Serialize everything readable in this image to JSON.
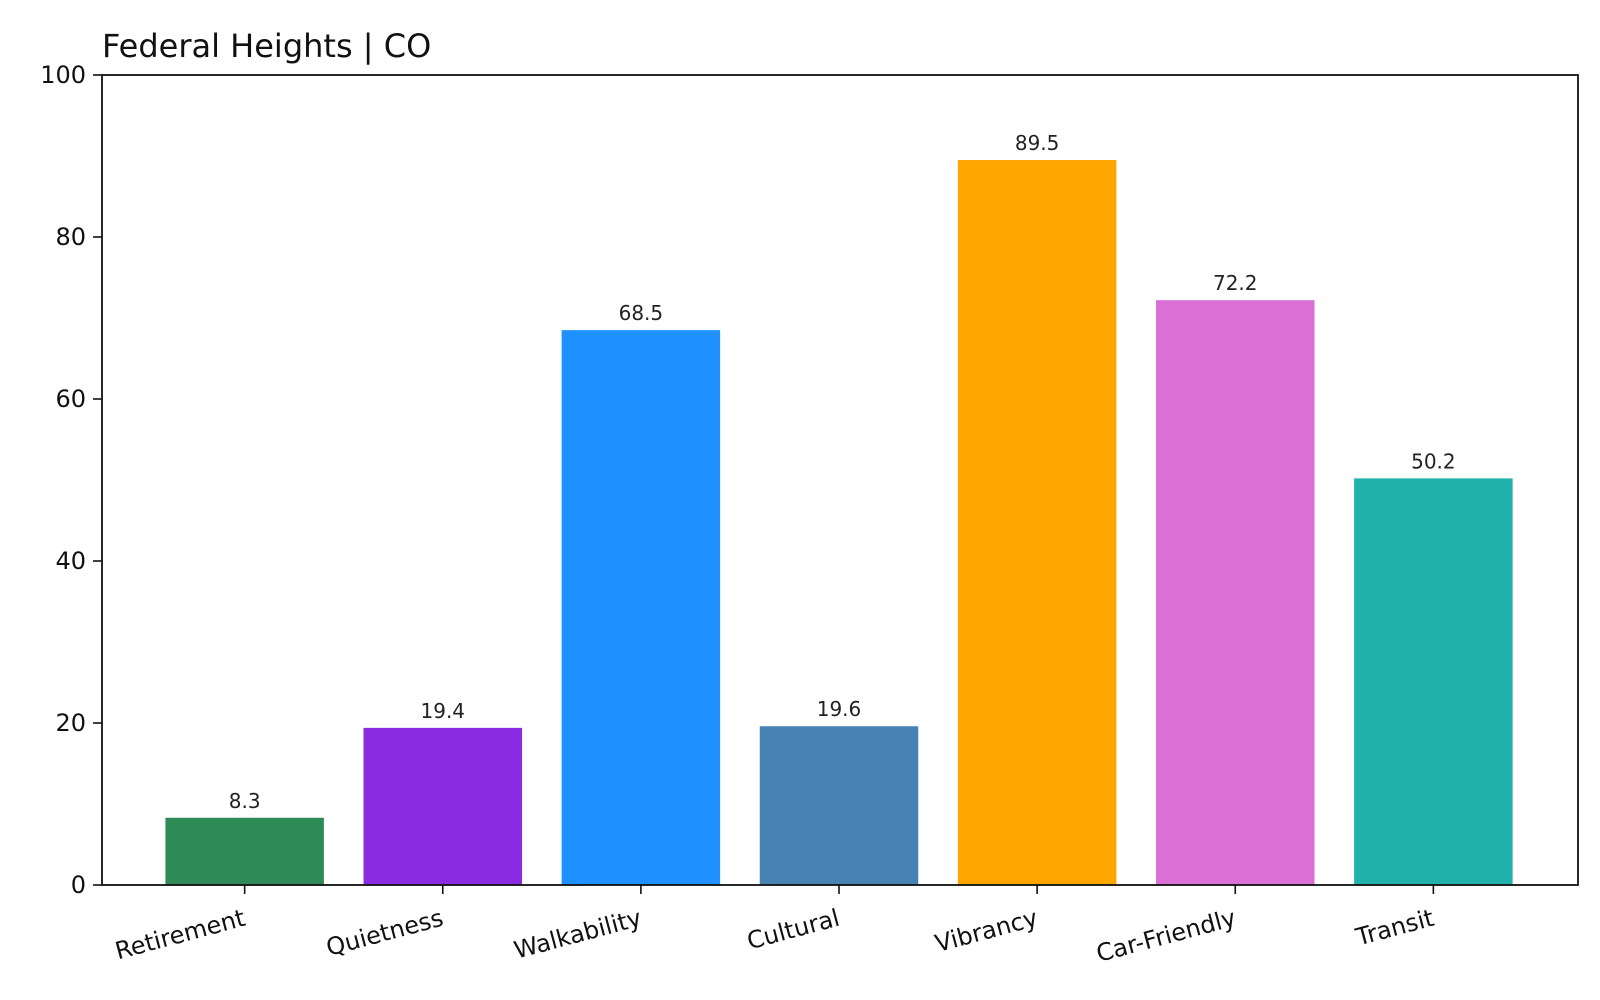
{
  "chart_data": {
    "type": "bar",
    "title": "Federal Heights | CO",
    "xlabel": "",
    "ylabel": "",
    "ylim": [
      0,
      100
    ],
    "yticks": [
      0,
      20,
      40,
      60,
      80,
      100
    ],
    "grid": false,
    "categories": [
      "Retirement",
      "Quietness",
      "Walkability",
      "Cultural",
      "Vibrancy",
      "Car-Friendly",
      "Transit"
    ],
    "values": [
      8.3,
      19.4,
      68.5,
      19.6,
      89.5,
      72.2,
      50.2
    ],
    "value_labels": [
      "8.3",
      "19.4",
      "68.5",
      "19.6",
      "89.5",
      "72.2",
      "50.2"
    ],
    "colors": [
      "#2e8b57",
      "#8a2be2",
      "#1e90ff",
      "#4682b4",
      "#ffa500",
      "#da70d6",
      "#20b2aa"
    ]
  }
}
